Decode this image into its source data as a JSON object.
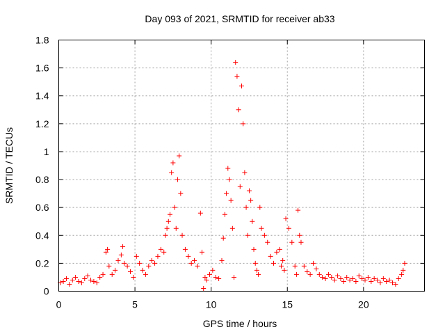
{
  "chart_data": {
    "type": "scatter",
    "title": "Day 093 of 2021, SRMTID for receiver ab33",
    "xlabel": "GPS time / hours",
    "ylabel": "SRMTID / TECUs",
    "xlim": [
      0,
      24
    ],
    "ylim": [
      0,
      1.8
    ],
    "x_ticks": [
      0,
      5,
      10,
      15,
      20
    ],
    "x_tick_labels": [
      "0",
      "5",
      "10",
      "15",
      "20"
    ],
    "y_ticks": [
      0,
      0.2,
      0.4,
      0.6,
      0.8,
      1.0,
      1.2,
      1.4,
      1.6,
      1.8
    ],
    "y_tick_labels": [
      "0",
      "0.2",
      "0.4",
      "0.6",
      "0.8",
      "1",
      "1.2",
      "1.4",
      "1.6",
      "1.8"
    ],
    "grid": true,
    "marker": "plus",
    "series": [
      {
        "name": "SRMTID",
        "color": "#ff0000",
        "x": [
          0.1,
          0.3,
          0.5,
          0.7,
          0.9,
          1.1,
          1.3,
          1.5,
          1.7,
          1.9,
          2.1,
          2.3,
          2.5,
          2.7,
          2.9,
          3.1,
          3.2,
          3.3,
          3.5,
          3.7,
          3.9,
          4.1,
          4.2,
          4.3,
          4.5,
          4.7,
          4.9,
          5.1,
          5.3,
          5.5,
          5.7,
          5.9,
          6.1,
          6.3,
          6.5,
          6.7,
          6.9,
          7.0,
          7.1,
          7.2,
          7.3,
          7.4,
          7.5,
          7.6,
          7.7,
          7.8,
          7.9,
          8.0,
          8.1,
          8.3,
          8.5,
          8.7,
          8.9,
          9.1,
          9.3,
          9.4,
          9.5,
          9.6,
          9.7,
          9.9,
          10.1,
          10.3,
          10.5,
          10.7,
          10.8,
          10.9,
          11.0,
          11.1,
          11.2,
          11.3,
          11.4,
          11.5,
          11.6,
          11.7,
          11.8,
          11.9,
          12.0,
          12.1,
          12.2,
          12.3,
          12.4,
          12.5,
          12.6,
          12.7,
          12.8,
          12.9,
          13.0,
          13.1,
          13.2,
          13.3,
          13.5,
          13.7,
          13.9,
          14.1,
          14.3,
          14.5,
          14.6,
          14.7,
          14.8,
          14.9,
          15.1,
          15.3,
          15.5,
          15.6,
          15.7,
          15.8,
          15.9,
          16.1,
          16.3,
          16.5,
          16.7,
          16.9,
          17.1,
          17.3,
          17.5,
          17.7,
          17.9,
          18.1,
          18.3,
          18.5,
          18.7,
          18.9,
          19.1,
          19.3,
          19.5,
          19.7,
          19.9,
          20.1,
          20.3,
          20.5,
          20.7,
          20.9,
          21.1,
          21.3,
          21.5,
          21.7,
          21.9,
          22.1,
          22.3,
          22.5,
          22.6,
          22.7
        ],
        "y": [
          0.06,
          0.07,
          0.09,
          0.05,
          0.08,
          0.1,
          0.07,
          0.06,
          0.09,
          0.11,
          0.08,
          0.07,
          0.06,
          0.1,
          0.12,
          0.28,
          0.3,
          0.18,
          0.12,
          0.15,
          0.22,
          0.26,
          0.32,
          0.2,
          0.18,
          0.14,
          0.1,
          0.25,
          0.2,
          0.15,
          0.12,
          0.18,
          0.22,
          0.2,
          0.25,
          0.3,
          0.28,
          0.4,
          0.45,
          0.5,
          0.55,
          0.85,
          0.92,
          0.6,
          0.45,
          0.8,
          0.97,
          0.7,
          0.4,
          0.3,
          0.25,
          0.2,
          0.22,
          0.18,
          0.56,
          0.28,
          0.02,
          0.1,
          0.08,
          0.12,
          0.15,
          0.1,
          0.09,
          0.22,
          0.38,
          0.55,
          0.7,
          0.88,
          0.8,
          0.65,
          0.45,
          0.1,
          1.64,
          1.54,
          1.3,
          0.75,
          1.47,
          1.2,
          0.85,
          0.6,
          0.4,
          0.72,
          0.65,
          0.5,
          0.3,
          0.2,
          0.15,
          0.12,
          0.6,
          0.45,
          0.4,
          0.35,
          0.25,
          0.2,
          0.28,
          0.3,
          0.18,
          0.22,
          0.15,
          0.52,
          0.45,
          0.35,
          0.18,
          0.12,
          0.58,
          0.4,
          0.35,
          0.18,
          0.14,
          0.12,
          0.2,
          0.16,
          0.12,
          0.1,
          0.09,
          0.12,
          0.1,
          0.08,
          0.11,
          0.09,
          0.07,
          0.1,
          0.08,
          0.09,
          0.07,
          0.11,
          0.09,
          0.08,
          0.1,
          0.07,
          0.09,
          0.08,
          0.06,
          0.09,
          0.07,
          0.08,
          0.06,
          0.05,
          0.09,
          0.12,
          0.15,
          0.2
        ]
      }
    ]
  }
}
